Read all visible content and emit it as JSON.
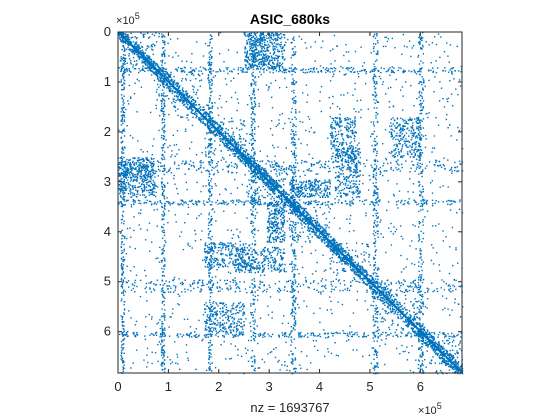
{
  "chart_data": {
    "type": "scatter",
    "kind": "sparsity-pattern",
    "title": "ASIC_680ks",
    "xlabel": "nz = 1693767",
    "ylabel": "",
    "x_exponent": "10",
    "x_exponent_power": "5",
    "y_exponent": "10",
    "y_exponent_power": "5",
    "x_multiplier_prefix": "×",
    "y_multiplier_prefix": "×",
    "xlim": [
      0,
      682712
    ],
    "ylim": [
      0,
      682712
    ],
    "y_reversed": true,
    "grid": false,
    "marker_color": "#0072BD",
    "x_ticks": [
      {
        "value": 0,
        "label": "0"
      },
      {
        "value": 100000,
        "label": "1"
      },
      {
        "value": 200000,
        "label": "2"
      },
      {
        "value": 300000,
        "label": "3"
      },
      {
        "value": 400000,
        "label": "4"
      },
      {
        "value": 500000,
        "label": "5"
      },
      {
        "value": 600000,
        "label": "6"
      }
    ],
    "y_ticks": [
      {
        "value": 0,
        "label": "0"
      },
      {
        "value": 100000,
        "label": "1"
      },
      {
        "value": 200000,
        "label": "2"
      },
      {
        "value": 300000,
        "label": "3"
      },
      {
        "value": 400000,
        "label": "4"
      },
      {
        "value": 500000,
        "label": "5"
      },
      {
        "value": 600000,
        "label": "6"
      }
    ],
    "diagonal_blocks": [
      {
        "start": 0,
        "end": 75000
      },
      {
        "start": 75000,
        "end": 170000
      },
      {
        "start": 170000,
        "end": 255000
      },
      {
        "start": 255000,
        "end": 335000
      },
      {
        "start": 335000,
        "end": 420000
      },
      {
        "start": 420000,
        "end": 500000
      },
      {
        "start": 500000,
        "end": 600000
      },
      {
        "start": 600000,
        "end": 682712
      }
    ],
    "dense_column_bands": [
      {
        "start": 5000,
        "end": 12000
      },
      {
        "start": 85000,
        "end": 92000
      },
      {
        "start": 178000,
        "end": 186000
      },
      {
        "start": 262000,
        "end": 272000
      },
      {
        "start": 342000,
        "end": 352000
      },
      {
        "start": 505000,
        "end": 515000
      },
      {
        "start": 595000,
        "end": 605000
      }
    ],
    "dense_row_bands": [
      {
        "start": 70000,
        "end": 80000
      },
      {
        "start": 255000,
        "end": 280000
      },
      {
        "start": 335000,
        "end": 345000
      },
      {
        "start": 495000,
        "end": 520000
      },
      {
        "start": 600000,
        "end": 610000
      }
    ],
    "dense_patches": [
      {
        "x0": 280000,
        "x1": 330000,
        "y0": 0,
        "y1": 75000
      },
      {
        "x0": 295000,
        "x1": 330000,
        "y0": 340000,
        "y1": 420000
      },
      {
        "x0": 540000,
        "x1": 600000,
        "y0": 170000,
        "y1": 250000
      },
      {
        "x0": 430000,
        "x1": 480000,
        "y0": 230000,
        "y1": 330000
      },
      {
        "x0": 0,
        "x1": 70000,
        "y0": 250000,
        "y1": 290000
      },
      {
        "x0": 170000,
        "x1": 260000,
        "y0": 420000,
        "y1": 470000
      }
    ]
  }
}
